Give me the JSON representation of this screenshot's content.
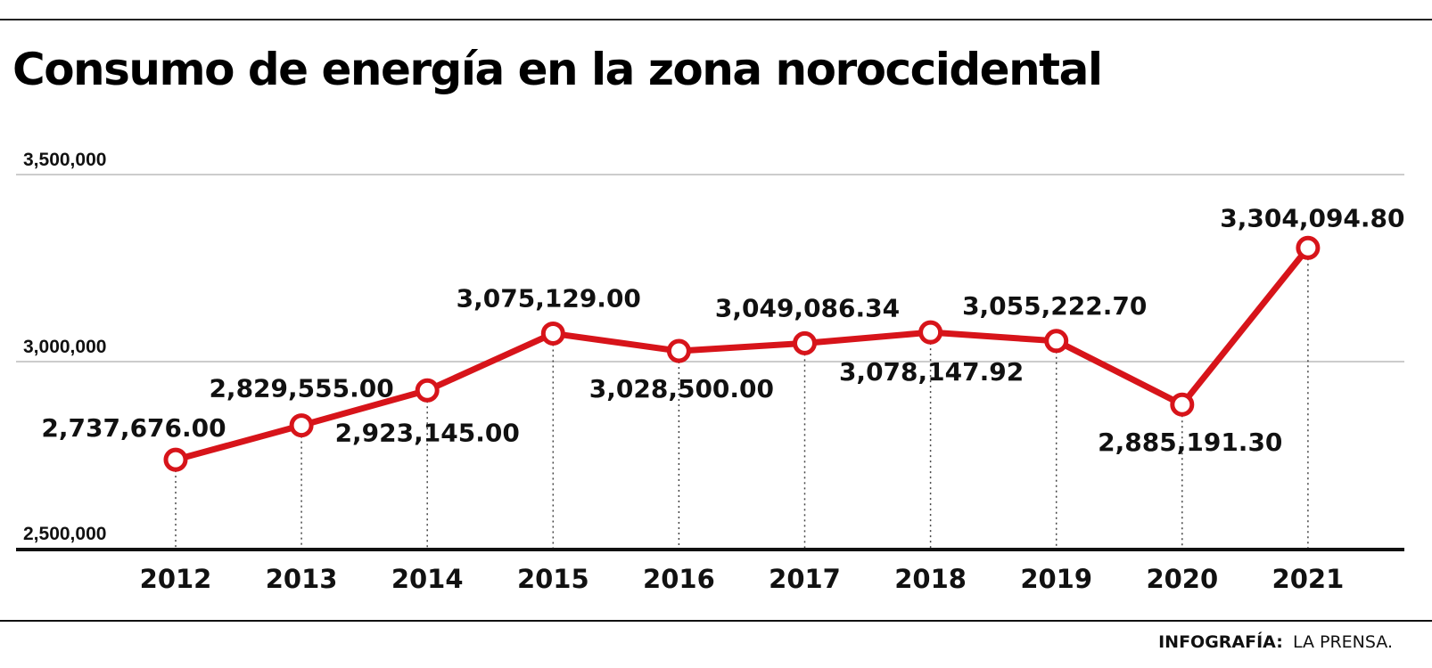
{
  "chart_data": {
    "type": "line",
    "title": "Consumo de energía  en la zona noroccidental",
    "xlabel": "",
    "ylabel": "",
    "categories": [
      "2012",
      "2013",
      "2014",
      "2015",
      "2016",
      "2017",
      "2018",
      "2019",
      "2020",
      "2021"
    ],
    "values": [
      2737676.0,
      2829555.0,
      2923145.0,
      3075129.0,
      3028500.0,
      3049086.34,
      3078147.92,
      3055222.7,
      2885191.3,
      3304094.8
    ],
    "data_labels": [
      "2,737,676.00",
      "2,829,555.00",
      "2,923,145.00",
      "3,075,129.00",
      "3,028,500.00",
      "3,049,086.34",
      "3,078,147.92",
      "3,055,222.70",
      "2,885,191.30",
      "3,304,094.80"
    ],
    "ylim": [
      2500000,
      3500000
    ],
    "yticks": [
      2500000,
      3000000,
      3500000
    ],
    "ytick_labels": [
      "2,500,000",
      "3,000,000",
      "3,500,000"
    ],
    "grid": true,
    "line_color": "#d7141a",
    "marker": "open-circle"
  },
  "credit": {
    "label": "INFOGRAFÍA:",
    "source": "LA PRENSA."
  }
}
